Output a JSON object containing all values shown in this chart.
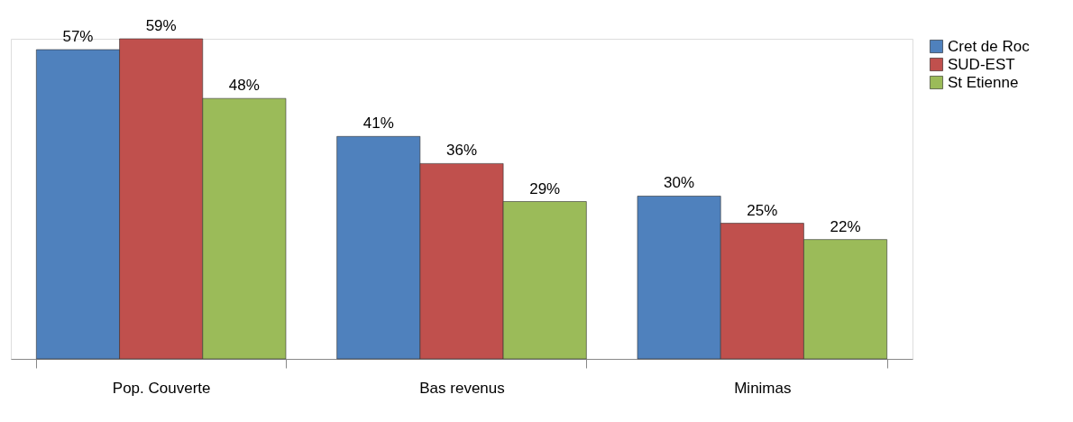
{
  "chart_data": {
    "type": "bar",
    "categories": [
      "Pop. Couverte",
      "Bas revenus",
      "Minimas"
    ],
    "series": [
      {
        "name": "Cret de Roc",
        "color": "#4f81bd",
        "values": [
          57,
          41,
          30
        ],
        "value_labels": [
          "57%",
          "41%",
          "30%"
        ]
      },
      {
        "name": "SUD-EST",
        "color": "#c0504d",
        "values": [
          59,
          36,
          25
        ],
        "value_labels": [
          "59%",
          "36%",
          "25%"
        ]
      },
      {
        "name": "St Etienne",
        "color": "#9bbb59",
        "values": [
          48,
          29,
          22
        ],
        "value_labels": [
          "48%",
          "29%",
          "22%"
        ]
      }
    ],
    "legend": "right",
    "grid": false
  }
}
